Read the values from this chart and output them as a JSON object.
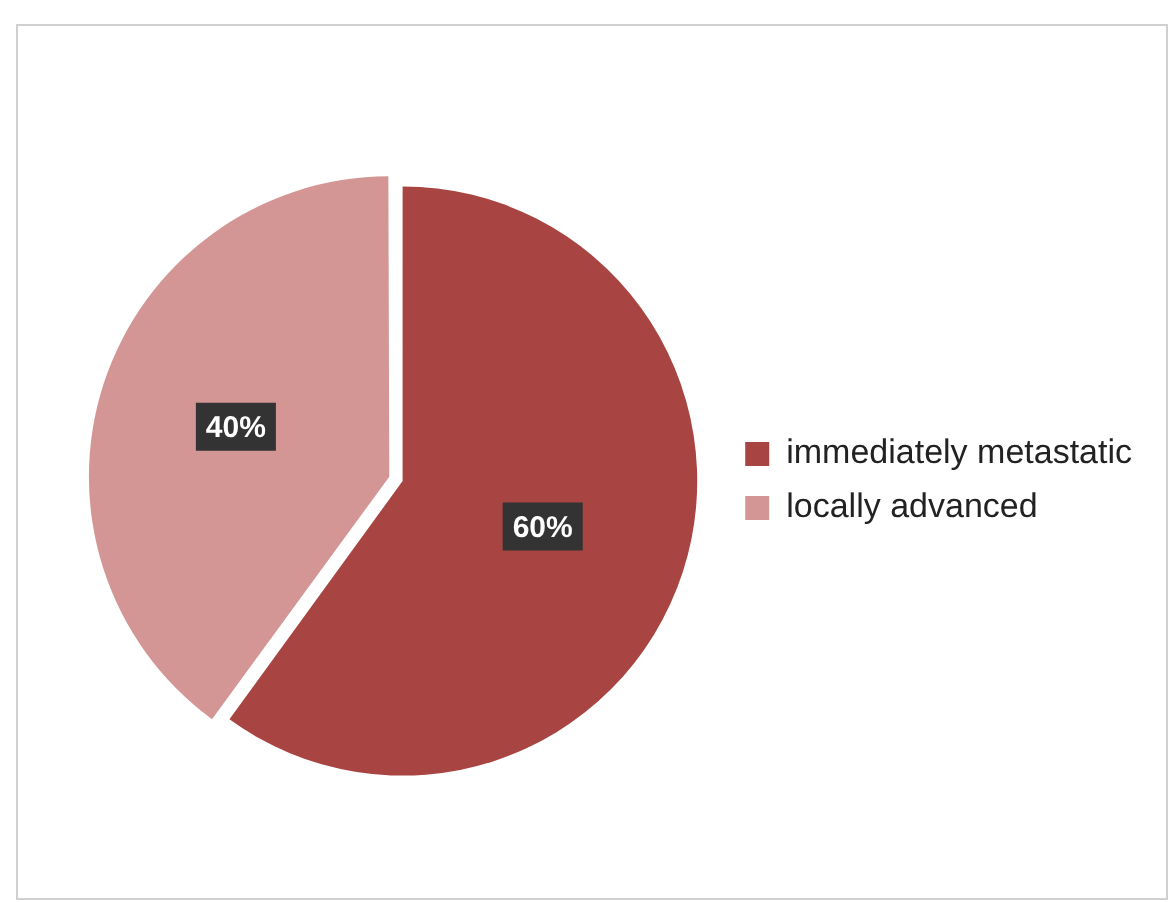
{
  "chart_data": {
    "type": "pie",
    "categories": [
      "immediately metastatic",
      "locally advanced"
    ],
    "values": [
      60,
      40
    ],
    "colors": [
      "#a84442",
      "#d39694"
    ],
    "value_labels": [
      "60%",
      "40%"
    ],
    "legend": "right"
  }
}
